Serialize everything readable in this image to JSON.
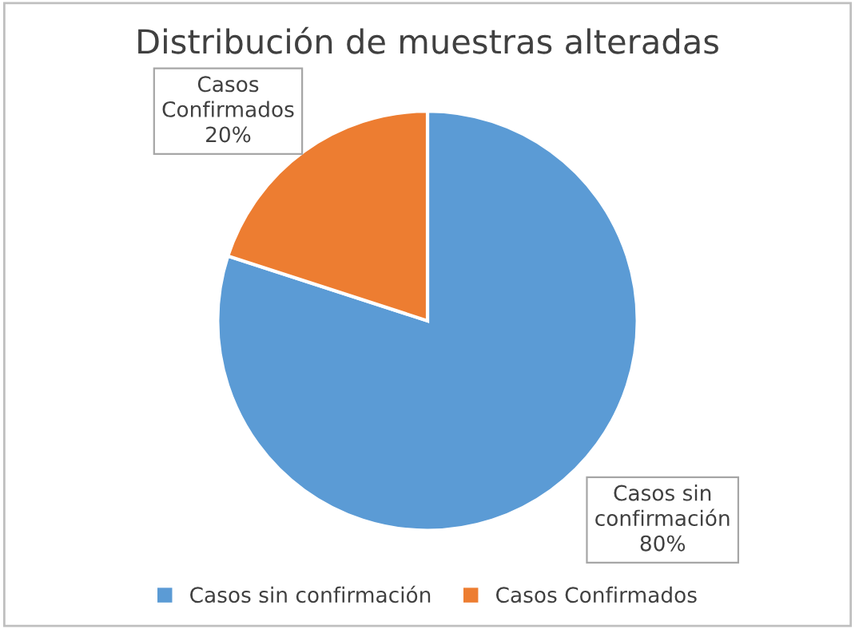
{
  "chart_data": {
    "type": "pie",
    "title": "Distribución de muestras alteradas",
    "categories": [
      "Casos sin confirmación",
      "Casos Confirmados"
    ],
    "values": [
      80,
      20
    ],
    "colors": [
      "#5b9bd5",
      "#ed7d31"
    ],
    "value_labels": [
      "80%",
      "20%"
    ],
    "legend": "bottom"
  }
}
